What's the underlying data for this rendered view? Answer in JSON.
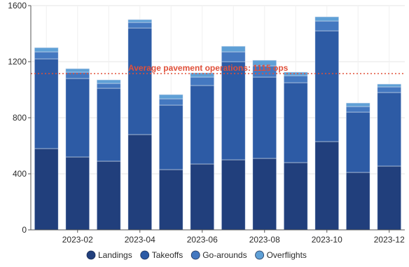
{
  "chart_data": {
    "type": "bar",
    "stacked": true,
    "categories": [
      "2023-01",
      "2023-02",
      "2023-03",
      "2023-04",
      "2023-05",
      "2023-06",
      "2023-07",
      "2023-08",
      "2023-09",
      "2023-10",
      "2023-11",
      "2023-12"
    ],
    "xtick_labels": [
      "",
      "2023-02",
      "",
      "2023-04",
      "",
      "2023-06",
      "",
      "2023-08",
      "",
      "2023-10",
      "",
      "2023-12"
    ],
    "series": [
      {
        "name": "Landings",
        "color": "#213f7c",
        "values": [
          580,
          520,
          490,
          680,
          430,
          470,
          500,
          510,
          480,
          630,
          410,
          455
        ]
      },
      {
        "name": "Takeoffs",
        "color": "#2d5ba5",
        "values": [
          640,
          560,
          520,
          760,
          460,
          560,
          700,
          580,
          570,
          790,
          430,
          525
        ]
      },
      {
        "name": "Go-arounds",
        "color": "#4478c0",
        "values": [
          50,
          45,
          35,
          40,
          45,
          60,
          70,
          80,
          50,
          70,
          40,
          40
        ]
      },
      {
        "name": "Overflights",
        "color": "#5fa0d6",
        "values": [
          30,
          25,
          25,
          20,
          30,
          30,
          40,
          40,
          25,
          30,
          25,
          20
        ]
      }
    ],
    "ylim": [
      0,
      1600
    ],
    "yticks": [
      0,
      400,
      800,
      1200,
      1600
    ],
    "reference_line": {
      "value": 1115,
      "label": "Average pavement operations: 1115 ops",
      "color": "#e0503a"
    },
    "grid": true,
    "legend_position": "bottom"
  }
}
